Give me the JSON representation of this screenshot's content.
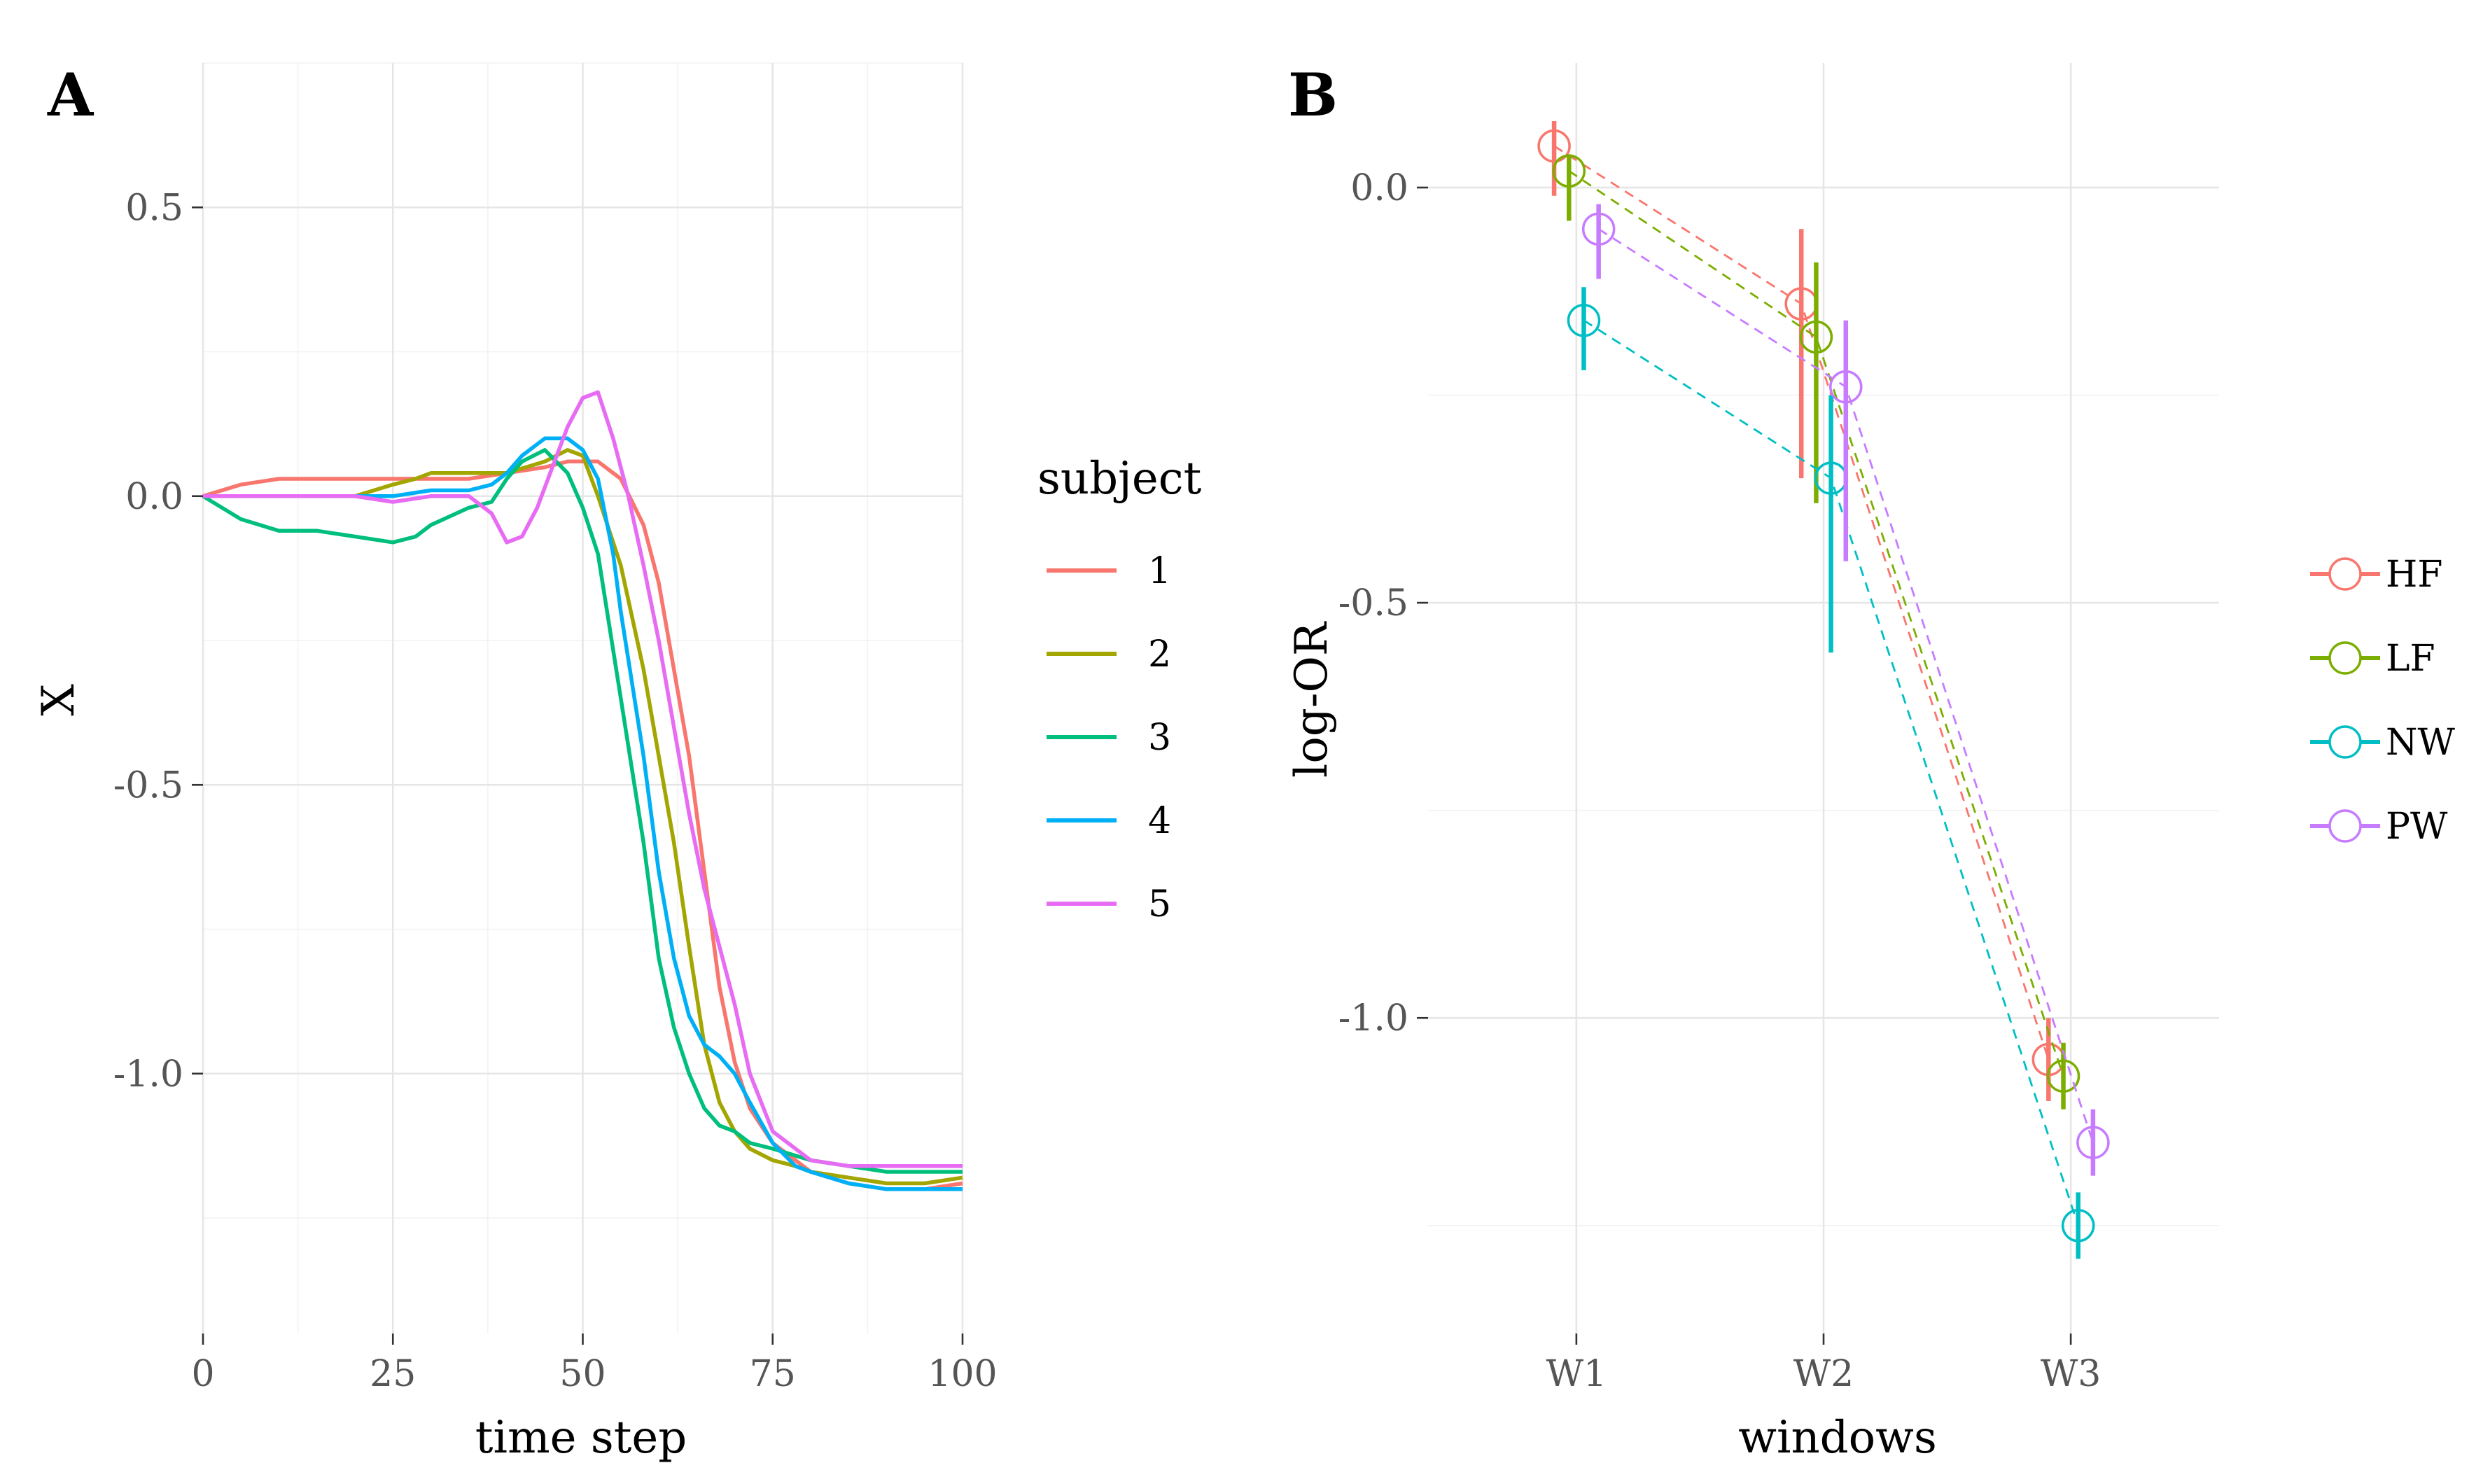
{
  "colors": {
    "c1": "#F8766D",
    "c2": "#A3A500",
    "c3": "#00BF7D",
    "c4": "#00B0F6",
    "c5": "#E76BF3",
    "HF": "#F8766D",
    "LF": "#7CAE00",
    "NW": "#00BFC4",
    "PW": "#C77CFF"
  },
  "chart_data": [
    {
      "panel": "A",
      "type": "line",
      "xlabel": "time step",
      "ylabel": "X",
      "xlim": [
        0,
        100
      ],
      "ylim": [
        -1.45,
        0.75
      ],
      "xticks": [
        0,
        25,
        50,
        75,
        100
      ],
      "xtick_labels": [
        "0",
        "25",
        "50",
        "75",
        "100"
      ],
      "yticks": [
        0.5,
        0.0,
        -0.5,
        -1.0
      ],
      "ytick_labels": [
        "0.5",
        "0.0",
        "-0.5",
        "-1.0"
      ],
      "legend_title": "subject",
      "series": [
        {
          "name": "1",
          "color": "#F8766D",
          "x": [
            0,
            5,
            10,
            15,
            20,
            25,
            30,
            35,
            40,
            45,
            48,
            52,
            55,
            58,
            60,
            62,
            64,
            66,
            68,
            70,
            72,
            75,
            78,
            80,
            85,
            90,
            95,
            100
          ],
          "y": [
            0.0,
            0.02,
            0.03,
            0.03,
            0.03,
            0.03,
            0.03,
            0.03,
            0.04,
            0.05,
            0.06,
            0.06,
            0.03,
            -0.05,
            -0.15,
            -0.3,
            -0.45,
            -0.65,
            -0.85,
            -0.98,
            -1.06,
            -1.12,
            -1.15,
            -1.17,
            -1.19,
            -1.2,
            -1.2,
            -1.19
          ]
        },
        {
          "name": "2",
          "color": "#A3A500",
          "x": [
            0,
            5,
            10,
            15,
            20,
            25,
            28,
            30,
            35,
            40,
            45,
            48,
            50,
            52,
            55,
            58,
            60,
            62,
            64,
            66,
            68,
            70,
            72,
            75,
            78,
            80,
            85,
            90,
            95,
            100
          ],
          "y": [
            0.0,
            0.0,
            0.0,
            0.0,
            0.0,
            0.02,
            0.03,
            0.04,
            0.04,
            0.04,
            0.06,
            0.08,
            0.07,
            0.0,
            -0.12,
            -0.3,
            -0.45,
            -0.6,
            -0.78,
            -0.95,
            -1.05,
            -1.1,
            -1.13,
            -1.15,
            -1.16,
            -1.17,
            -1.18,
            -1.19,
            -1.19,
            -1.18
          ]
        },
        {
          "name": "3",
          "color": "#00BF7D",
          "x": [
            0,
            5,
            10,
            15,
            20,
            25,
            28,
            30,
            35,
            38,
            40,
            42,
            45,
            48,
            50,
            52,
            55,
            58,
            60,
            62,
            64,
            66,
            68,
            70,
            72,
            75,
            80,
            85,
            90,
            95,
            100
          ],
          "y": [
            0.0,
            -0.04,
            -0.06,
            -0.06,
            -0.07,
            -0.08,
            -0.07,
            -0.05,
            -0.02,
            -0.01,
            0.03,
            0.06,
            0.08,
            0.04,
            -0.02,
            -0.1,
            -0.35,
            -0.6,
            -0.8,
            -0.92,
            -1.0,
            -1.06,
            -1.09,
            -1.1,
            -1.12,
            -1.13,
            -1.15,
            -1.16,
            -1.17,
            -1.17,
            -1.17
          ]
        },
        {
          "name": "4",
          "color": "#00B0F6",
          "x": [
            0,
            5,
            10,
            15,
            20,
            25,
            30,
            35,
            38,
            40,
            42,
            45,
            48,
            50,
            52,
            54,
            55,
            58,
            60,
            62,
            64,
            66,
            68,
            70,
            72,
            75,
            78,
            80,
            85,
            90,
            95,
            100
          ],
          "y": [
            0.0,
            0.0,
            0.0,
            0.0,
            0.0,
            0.0,
            0.01,
            0.01,
            0.02,
            0.04,
            0.07,
            0.1,
            0.1,
            0.08,
            0.03,
            -0.1,
            -0.2,
            -0.45,
            -0.65,
            -0.8,
            -0.9,
            -0.95,
            -0.97,
            -1.0,
            -1.05,
            -1.12,
            -1.16,
            -1.17,
            -1.19,
            -1.2,
            -1.2,
            -1.2
          ]
        },
        {
          "name": "5",
          "color": "#E76BF3",
          "x": [
            0,
            5,
            10,
            15,
            20,
            25,
            30,
            35,
            38,
            40,
            42,
            44,
            46,
            48,
            50,
            52,
            54,
            56,
            58,
            60,
            62,
            64,
            66,
            68,
            70,
            72,
            75,
            80,
            85,
            90,
            95,
            100
          ],
          "y": [
            0.0,
            0.0,
            0.0,
            0.0,
            0.0,
            -0.01,
            0.0,
            0.0,
            -0.03,
            -0.08,
            -0.07,
            -0.02,
            0.05,
            0.12,
            0.17,
            0.18,
            0.1,
            0.0,
            -0.12,
            -0.25,
            -0.4,
            -0.55,
            -0.68,
            -0.78,
            -0.88,
            -1.0,
            -1.1,
            -1.15,
            -1.16,
            -1.16,
            -1.16,
            -1.16
          ]
        }
      ]
    },
    {
      "panel": "B",
      "type": "scatter",
      "xlabel": "windows",
      "ylabel": "log-OR",
      "categories": [
        "W1",
        "W2",
        "W3"
      ],
      "ylim": [
        -1.38,
        0.15
      ],
      "yticks": [
        0.0,
        -0.5,
        -1.0
      ],
      "ytick_labels": [
        "0.0",
        "-0.5",
        "-1.0"
      ],
      "series": [
        {
          "name": "HF",
          "color": "#F8766D",
          "offset": -0.09,
          "values": [
            0.05,
            -0.14,
            -1.05
          ],
          "lower": [
            -0.01,
            -0.35,
            -1.1
          ],
          "upper": [
            0.08,
            -0.05,
            -1.0
          ]
        },
        {
          "name": "LF",
          "color": "#7CAE00",
          "offset": -0.03,
          "values": [
            0.02,
            -0.18,
            -1.07
          ],
          "lower": [
            -0.04,
            -0.38,
            -1.11
          ],
          "upper": [
            0.04,
            -0.09,
            -1.03
          ]
        },
        {
          "name": "NW",
          "color": "#00BFC4",
          "offset": 0.03,
          "values": [
            -0.16,
            -0.35,
            -1.25
          ],
          "lower": [
            -0.22,
            -0.56,
            -1.29
          ],
          "upper": [
            -0.12,
            -0.25,
            -1.21
          ]
        },
        {
          "name": "PW",
          "color": "#C77CFF",
          "offset": 0.09,
          "values": [
            -0.05,
            -0.24,
            -1.15
          ],
          "lower": [
            -0.11,
            -0.45,
            -1.19
          ],
          "upper": [
            -0.02,
            -0.16,
            -1.11
          ]
        }
      ]
    }
  ]
}
